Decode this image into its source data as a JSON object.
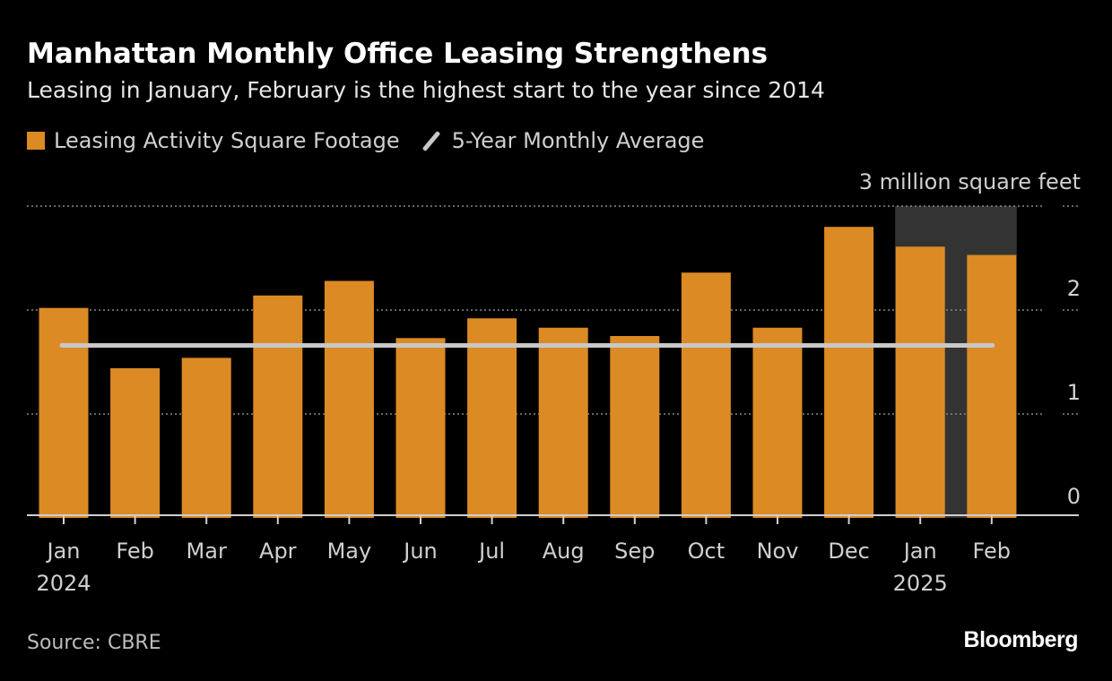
{
  "chart_data": {
    "type": "bar",
    "title": "Manhattan Monthly Office Leasing Strengthens",
    "subtitle": "Leasing in January, February is the highest start to the year since 2014",
    "categories": [
      "Jan 2024",
      "Feb",
      "Mar",
      "Apr",
      "May",
      "Jun",
      "Jul",
      "Aug",
      "Sep",
      "Oct",
      "Nov",
      "Dec",
      "Jan 2025",
      "Feb"
    ],
    "tick_labels": [
      [
        "Jan",
        "2024"
      ],
      [
        "Feb"
      ],
      [
        "Mar"
      ],
      [
        "Apr"
      ],
      [
        "May"
      ],
      [
        "Jun"
      ],
      [
        "Jul"
      ],
      [
        "Aug"
      ],
      [
        "Sep"
      ],
      [
        "Oct"
      ],
      [
        "Nov"
      ],
      [
        "Dec"
      ],
      [
        "Jan",
        "2025"
      ],
      [
        "Feb"
      ]
    ],
    "series": [
      {
        "name": "Leasing Activity Square Footage",
        "type": "bar",
        "color": "#dc8a24",
        "values": [
          2.02,
          1.44,
          1.54,
          2.14,
          2.28,
          1.73,
          1.92,
          1.83,
          1.75,
          2.36,
          1.83,
          2.8,
          2.61,
          2.53
        ]
      },
      {
        "name": "5-Year Monthly Average",
        "type": "line",
        "color": "#c8c8c8",
        "value": 1.66
      }
    ],
    "ylabel": "3 million square feet",
    "yticks": [
      0,
      1,
      2,
      3
    ],
    "ytick_labels": [
      "0",
      "1",
      "2",
      ""
    ],
    "ylim": [
      0,
      3
    ],
    "y_axis_side": "right",
    "grid": true,
    "highlight": {
      "categories": [
        "Jan 2025",
        "Feb"
      ],
      "color": "#333333"
    },
    "legend_position": "top-left"
  },
  "source": "Source: CBRE",
  "logo": "Bloomberg"
}
